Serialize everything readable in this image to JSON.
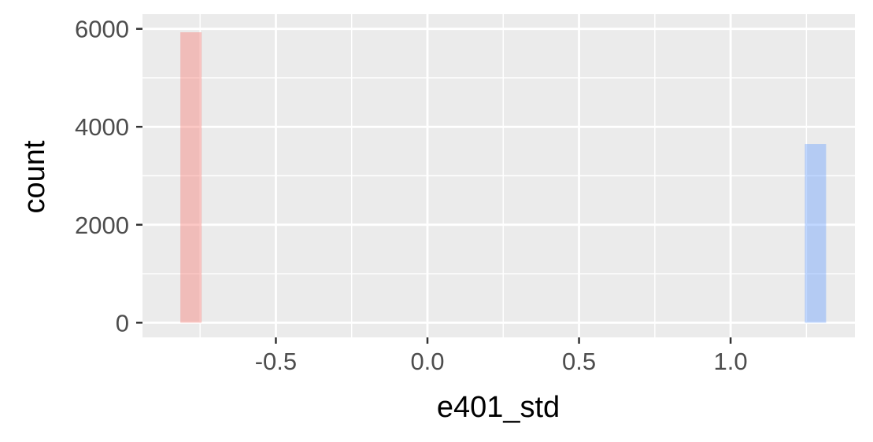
{
  "chart_data": {
    "type": "bar",
    "subtype": "histogram",
    "title": "",
    "xlabel": "e401_std",
    "ylabel": "count",
    "xlim": [
      -0.94,
      1.41
    ],
    "ylim": [
      -300,
      6300
    ],
    "x_ticks": [
      -0.5,
      0.0,
      0.5,
      1.0
    ],
    "x_tick_labels": [
      "-0.5",
      "0.0",
      "0.5",
      "1.0"
    ],
    "y_ticks": [
      0,
      2000,
      4000,
      6000
    ],
    "y_tick_labels": [
      "0",
      "2000",
      "4000",
      "6000"
    ],
    "grid": true,
    "legend": "none",
    "bars": [
      {
        "x_start": -0.815,
        "x_end": -0.745,
        "count": 5930,
        "color": "#f8766d"
      },
      {
        "x_start": 1.245,
        "x_end": 1.315,
        "count": 3650,
        "color": "#619cff"
      }
    ]
  },
  "colors": {
    "panel_background": "#ebebeb",
    "grid": "#ffffff",
    "bar_red": "#f8766d",
    "bar_blue": "#619cff"
  }
}
